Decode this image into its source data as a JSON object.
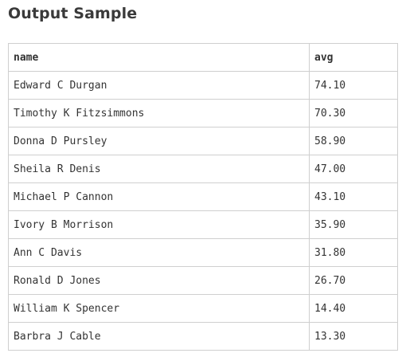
{
  "page": {
    "title": "Output Sample"
  },
  "table": {
    "headers": {
      "name": "name",
      "avg": "avg"
    },
    "rows": [
      {
        "name": "Edward C Durgan",
        "avg": "74.10"
      },
      {
        "name": "Timothy K Fitzsimmons",
        "avg": "70.30"
      },
      {
        "name": "Donna D Pursley",
        "avg": "58.90"
      },
      {
        "name": "Sheila R Denis",
        "avg": "47.00"
      },
      {
        "name": "Michael P Cannon",
        "avg": "43.10"
      },
      {
        "name": "Ivory B Morrison",
        "avg": "35.90"
      },
      {
        "name": "Ann C Davis",
        "avg": "31.80"
      },
      {
        "name": "Ronald D Jones",
        "avg": "26.70"
      },
      {
        "name": "William K Spencer",
        "avg": "14.40"
      },
      {
        "name": "Barbra J Cable",
        "avg": "13.30"
      }
    ]
  }
}
